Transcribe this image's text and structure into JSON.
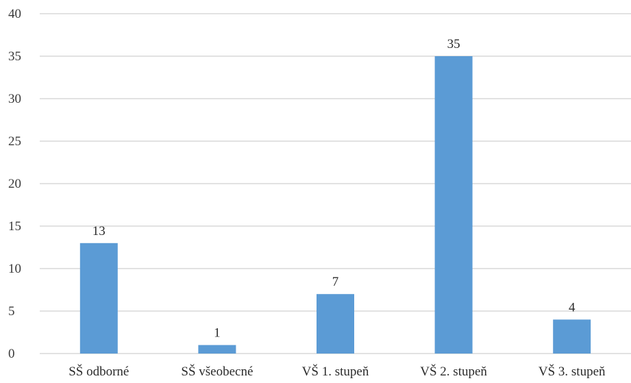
{
  "chart_data": {
    "type": "bar",
    "title": "",
    "xlabel": "",
    "ylabel": "",
    "categories": [
      "SŠ odborné",
      "SŠ všeobecné",
      "VŠ 1. stupeň",
      "VŠ 2. stupeň",
      "VŠ 3. stupeň"
    ],
    "values": [
      13,
      1,
      7,
      35,
      4
    ],
    "data_labels": [
      "13",
      "1",
      "7",
      "35",
      "4"
    ],
    "ylim": [
      0,
      40
    ],
    "yticks": [
      0,
      5,
      10,
      15,
      20,
      25,
      30,
      35,
      40
    ],
    "ytick_labels": [
      "0",
      "5",
      "10",
      "15",
      "20",
      "25",
      "30",
      "35",
      "40"
    ],
    "grid": true,
    "legend": false,
    "bar_color": "#5b9bd5"
  }
}
